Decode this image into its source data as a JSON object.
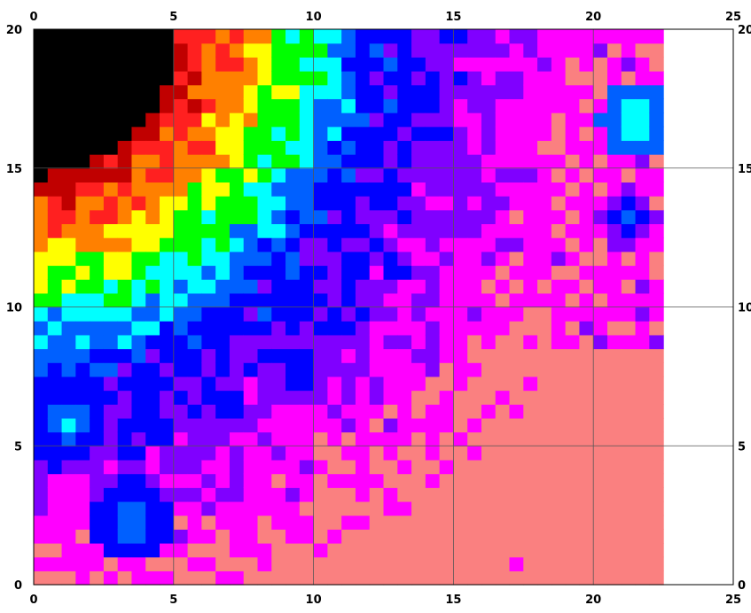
{
  "chart_data": {
    "type": "heatmap",
    "title": "",
    "xlabel": "",
    "ylabel": "",
    "xlim": [
      0,
      25
    ],
    "ylim": [
      0,
      20
    ],
    "x_ticks": [
      "0",
      "5",
      "10",
      "15",
      "20",
      "25"
    ],
    "y_ticks": [
      "0",
      "5",
      "10",
      "15",
      "20"
    ],
    "grid": true,
    "cell_size": 0.5,
    "data_extent": {
      "x": [
        0,
        22.5
      ],
      "y": [
        0,
        20
      ]
    },
    "field_description": "Color-coded scalar field on a 0.5-unit grid; black region top-left, rainbow gradient diagonally to blue/violet, magenta and salmon toward bottom-right.",
    "color_ramp": [
      "#000000",
      "#c00000",
      "#ff2020",
      "#ff8000",
      "#ffff00",
      "#00ff00",
      "#00ffff",
      "#0060ff",
      "#0000ff",
      "#8000ff",
      "#ff00ff",
      "#fa8080"
    ],
    "anomalies": [
      {
        "x": 21.5,
        "y": 16.75,
        "peak_level": 5,
        "radius": 0.7
      },
      {
        "x": 21.25,
        "y": 13.25,
        "peak_level": 7,
        "radius": 0.6
      },
      {
        "x": 9.5,
        "y": 7.75,
        "peak_level": 7,
        "radius": 0.7
      },
      {
        "x": 1.25,
        "y": 5.9,
        "peak_level": 6,
        "radius": 0.8
      },
      {
        "x": 3.5,
        "y": 2.4,
        "peak_level": 6,
        "radius": 0.8
      },
      {
        "x": 17.25,
        "y": 0.8,
        "peak_level": 10,
        "radius": 0.4
      },
      {
        "x": 8.0,
        "y": 0.25,
        "peak_level": 10,
        "radius": 0.4
      }
    ]
  }
}
